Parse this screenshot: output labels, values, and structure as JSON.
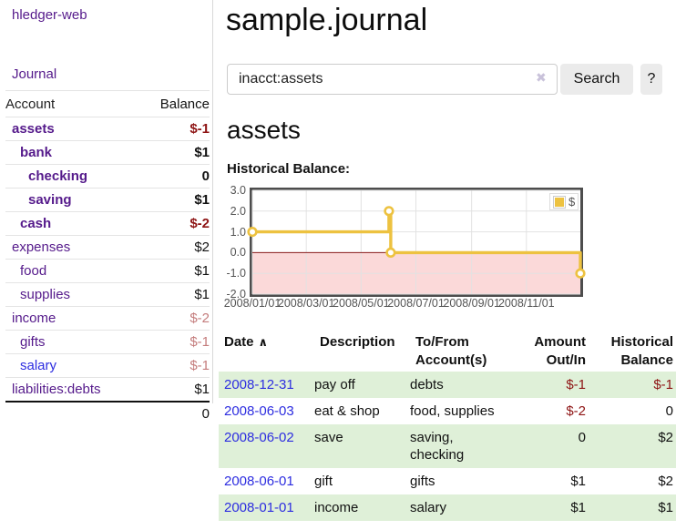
{
  "sidebar": {
    "brand": "hledger-web",
    "journal_link": "Journal",
    "account_col": "Account",
    "balance_col": "Balance",
    "accounts": [
      {
        "name": "assets",
        "balance": "$-1"
      },
      {
        "name": "bank",
        "balance": "$1"
      },
      {
        "name": "checking",
        "balance": "0"
      },
      {
        "name": "saving",
        "balance": "$1"
      },
      {
        "name": "cash",
        "balance": "$-2"
      },
      {
        "name": "expenses",
        "balance": "$2"
      },
      {
        "name": "food",
        "balance": "$1"
      },
      {
        "name": "supplies",
        "balance": "$1"
      },
      {
        "name": "income",
        "balance": "$-2"
      },
      {
        "name": "gifts",
        "balance": "$-1"
      },
      {
        "name": "salary",
        "balance": "$-1"
      },
      {
        "name": "liabilities:debts",
        "balance": "$1"
      }
    ],
    "total": "0"
  },
  "header": {
    "title": "sample.journal"
  },
  "search": {
    "query": "inacct:assets",
    "clear_icon": "✖",
    "button_label": "Search",
    "help_label": "?"
  },
  "account_page": {
    "heading": "assets",
    "chart_title": "Historical Balance:"
  },
  "chart_data": {
    "type": "line",
    "title": "Historical Balance:",
    "series": [
      {
        "name": "$",
        "color": "#edc240",
        "step": true,
        "points": [
          {
            "date": "2008-01-01",
            "value": 1
          },
          {
            "date": "2008-06-01",
            "value": 2
          },
          {
            "date": "2008-06-03",
            "value": 0
          },
          {
            "date": "2008-12-31",
            "value": -1
          }
        ]
      }
    ],
    "x_range": [
      "2008-01-01",
      "2008-12-31"
    ],
    "x_ticks": [
      "2008/01/01",
      "2008/03/01",
      "2008/05/01",
      "2008/07/01",
      "2008/09/01",
      "2008/11/01"
    ],
    "y_ticks": [
      3.0,
      2.0,
      1.0,
      0.0,
      -1.0,
      -2.0
    ],
    "ylim": [
      -2,
      3
    ],
    "grid": true,
    "grid_color": "#e2e2e2",
    "negative_fill": "#fbd9d9",
    "zero_line_color": "#8b1a1a",
    "legend_position": "top-right"
  },
  "register": {
    "columns": {
      "date": "Date",
      "sort_indicator": "∧",
      "description": "Description",
      "tofrom": "To/From\nAccount(s)",
      "amount": "Amount\nOut/In",
      "balance": "Historical\nBalance"
    },
    "rows": [
      {
        "date": "2008-12-31",
        "description": "pay off",
        "accounts": "debts",
        "amount": "$-1",
        "balance": "$-1"
      },
      {
        "date": "2008-06-03",
        "description": "eat & shop",
        "accounts": "food, supplies",
        "amount": "$-2",
        "balance": "0"
      },
      {
        "date": "2008-06-02",
        "description": "save",
        "accounts": "saving,\nchecking",
        "amount": "0",
        "balance": "$2"
      },
      {
        "date": "2008-06-01",
        "description": "gift",
        "accounts": "gifts",
        "amount": "$1",
        "balance": "$2"
      },
      {
        "date": "2008-01-01",
        "description": "income",
        "accounts": "salary",
        "amount": "$1",
        "balance": "$1"
      }
    ]
  }
}
